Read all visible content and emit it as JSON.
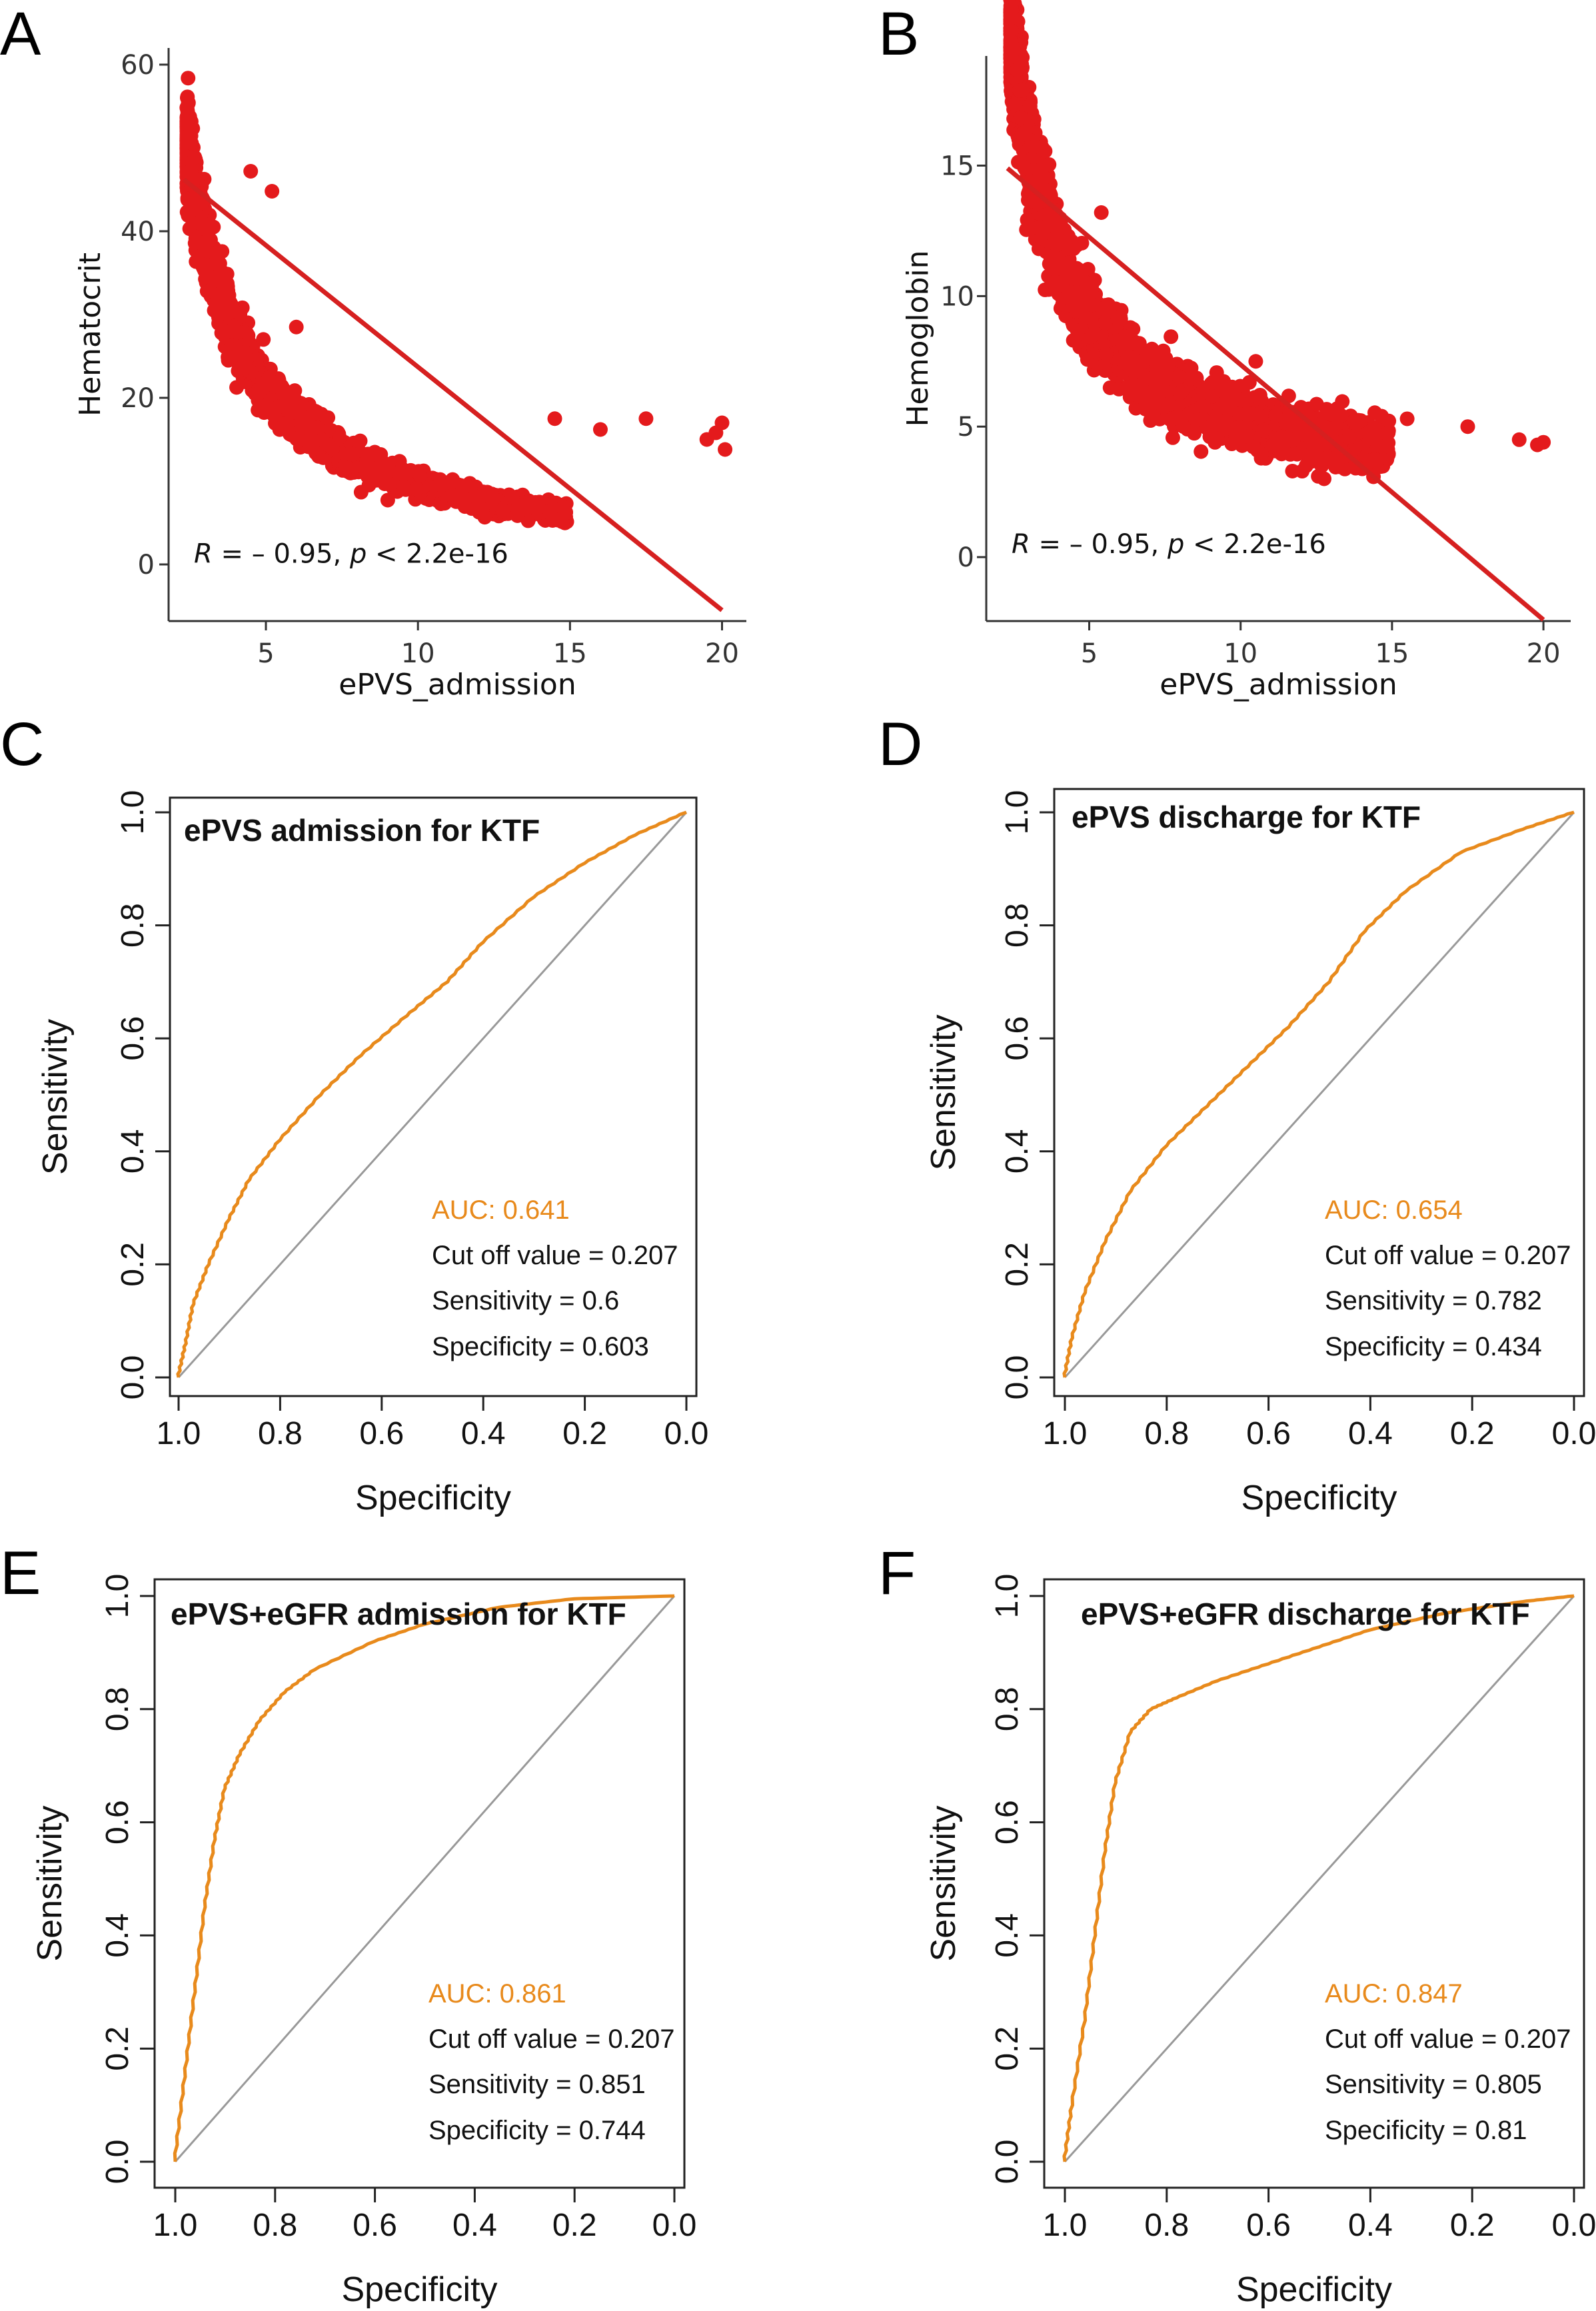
{
  "chart_data": [
    {
      "panel": "A",
      "type": "scatter",
      "xlabel": "ePVS_admission",
      "ylabel": "Hematocrit",
      "xlim": [
        1.8,
        20.8
      ],
      "ylim": [
        -6.8,
        62
      ],
      "xticks": [
        "5",
        "10",
        "15",
        "20"
      ],
      "yticks": [
        "0",
        "20",
        "40",
        "60"
      ],
      "annotation": {
        "r_label": "R",
        "r_value": " = – 0.95, ",
        "p_label": "p",
        "p_value": " < 2.2e-16"
      },
      "fit": {
        "x1": 2.3,
        "y1": 46.2,
        "x2": 20,
        "y2": -5.5
      },
      "curve": {
        "a": 137,
        "b": 1.15,
        "offset": 0
      },
      "outliers": [
        [
          19.5,
          15
        ],
        [
          19.8,
          15.8
        ],
        [
          20,
          17
        ],
        [
          20.1,
          13.8
        ],
        [
          17.5,
          17.5
        ],
        [
          16,
          16.2
        ],
        [
          14.5,
          17.5
        ],
        [
          6,
          28.5
        ],
        [
          4.5,
          47.2
        ],
        [
          5.2,
          44.8
        ]
      ],
      "color": "#e41a1c"
    },
    {
      "panel": "B",
      "type": "scatter",
      "xlabel": "ePVS_admission",
      "ylabel": "Hemoglobin",
      "xlim": [
        1.6,
        20.9
      ],
      "ylim": [
        -2.45,
        19.2
      ],
      "xticks": [
        "5",
        "10",
        "15",
        "20"
      ],
      "yticks": [
        "0",
        "5",
        "10",
        "15"
      ],
      "annotation": {
        "r_label": "R",
        "r_value": " = – 0.95, ",
        "p_label": "p",
        "p_value": " < 2.2e-16"
      },
      "fit": {
        "x1": 2.3,
        "y1": 14.9,
        "x2": 20,
        "y2": -2.4
      },
      "curve": {
        "a": 56,
        "b": 1.32,
        "offset": 2.6
      },
      "outliers": [
        [
          19.2,
          4.5
        ],
        [
          19.8,
          4.3
        ],
        [
          20,
          4.4
        ],
        [
          17.5,
          5
        ],
        [
          15.5,
          5.3
        ],
        [
          10.5,
          7.5
        ],
        [
          3.8,
          13.3
        ],
        [
          5.4,
          13.2
        ]
      ],
      "color": "#e41a1c"
    },
    {
      "panel": "C",
      "type": "line",
      "title": "ePVS admission for KTF",
      "xlabel": "Specificity",
      "ylabel": "Sensitivity",
      "xticks": [
        "1.0",
        "0.8",
        "0.6",
        "0.4",
        "0.2",
        "0.0"
      ],
      "yticks": [
        "0.0",
        "0.2",
        "0.4",
        "0.6",
        "0.8",
        "1.0"
      ],
      "auc": "AUC: 0.641",
      "cutoff": "Cut off value = 0.207",
      "sensitivity": "Sensitivity = 0.6",
      "specificity": "Specificity = 0.603",
      "roc": [
        [
          1.0,
          0.0
        ],
        [
          0.985,
          0.06
        ],
        [
          0.97,
          0.13
        ],
        [
          0.94,
          0.2
        ],
        [
          0.9,
          0.28
        ],
        [
          0.86,
          0.35
        ],
        [
          0.8,
          0.42
        ],
        [
          0.72,
          0.5
        ],
        [
          0.64,
          0.57
        ],
        [
          0.55,
          0.64
        ],
        [
          0.47,
          0.7
        ],
        [
          0.4,
          0.77
        ],
        [
          0.3,
          0.85
        ],
        [
          0.2,
          0.91
        ],
        [
          0.1,
          0.96
        ],
        [
          0.0,
          1.0
        ]
      ],
      "color": "#e88a1c"
    },
    {
      "panel": "D",
      "type": "line",
      "title": "ePVS discharge for KTF",
      "xlabel": "Specificity",
      "ylabel": "Sensitivity",
      "xticks": [
        "1.0",
        "0.8",
        "0.6",
        "0.4",
        "0.2",
        "0.0"
      ],
      "yticks": [
        "0.0",
        "0.2",
        "0.4",
        "0.6",
        "0.8",
        "1.0"
      ],
      "auc": "AUC: 0.654",
      "cutoff": "Cut off value = 0.207",
      "sensitivity": "Sensitivity = 0.782",
      "specificity": "Specificity = 0.434",
      "roc": [
        [
          1.0,
          0.0
        ],
        [
          0.985,
          0.07
        ],
        [
          0.96,
          0.15
        ],
        [
          0.92,
          0.24
        ],
        [
          0.87,
          0.33
        ],
        [
          0.8,
          0.41
        ],
        [
          0.72,
          0.48
        ],
        [
          0.64,
          0.55
        ],
        [
          0.56,
          0.62
        ],
        [
          0.48,
          0.7
        ],
        [
          0.41,
          0.79
        ],
        [
          0.33,
          0.86
        ],
        [
          0.22,
          0.93
        ],
        [
          0.1,
          0.97
        ],
        [
          0.0,
          1.0
        ]
      ],
      "color": "#e88a1c"
    },
    {
      "panel": "E",
      "type": "line",
      "title": "ePVS+eGFR admission for KTF",
      "xlabel": "Specificity",
      "ylabel": "Sensitivity",
      "xticks": [
        "1.0",
        "0.8",
        "0.6",
        "0.4",
        "0.2",
        "0.0"
      ],
      "yticks": [
        "0.0",
        "0.2",
        "0.4",
        "0.6",
        "0.8",
        "1.0"
      ],
      "auc": "AUC: 0.861",
      "cutoff": "Cut off value = 0.207",
      "sensitivity": "Sensitivity = 0.851",
      "specificity": "Specificity = 0.744",
      "roc": [
        [
          1.0,
          0.0
        ],
        [
          0.98,
          0.15
        ],
        [
          0.96,
          0.3
        ],
        [
          0.94,
          0.45
        ],
        [
          0.92,
          0.57
        ],
        [
          0.9,
          0.66
        ],
        [
          0.87,
          0.72
        ],
        [
          0.83,
          0.78
        ],
        [
          0.78,
          0.83
        ],
        [
          0.72,
          0.87
        ],
        [
          0.6,
          0.92
        ],
        [
          0.5,
          0.95
        ],
        [
          0.35,
          0.98
        ],
        [
          0.2,
          0.995
        ],
        [
          0.0,
          1.0
        ]
      ],
      "color": "#e88a1c"
    },
    {
      "panel": "F",
      "type": "line",
      "title": "ePVS+eGFR discharge for KTF",
      "xlabel": "Specificity",
      "ylabel": "Sensitivity",
      "xticks": [
        "1.0",
        "0.8",
        "0.6",
        "0.4",
        "0.2",
        "0.0"
      ],
      "yticks": [
        "0.0",
        "0.2",
        "0.4",
        "0.6",
        "0.8",
        "1.0"
      ],
      "auc": "AUC: 0.847",
      "cutoff": "Cut off value = 0.207",
      "sensitivity": "Sensitivity = 0.805",
      "specificity": "Specificity = 0.81",
      "roc": [
        [
          1.0,
          0.0
        ],
        [
          0.985,
          0.1
        ],
        [
          0.96,
          0.25
        ],
        [
          0.94,
          0.4
        ],
        [
          0.92,
          0.55
        ],
        [
          0.9,
          0.67
        ],
        [
          0.87,
          0.76
        ],
        [
          0.83,
          0.8
        ],
        [
          0.78,
          0.82
        ],
        [
          0.7,
          0.85
        ],
        [
          0.6,
          0.88
        ],
        [
          0.5,
          0.91
        ],
        [
          0.4,
          0.94
        ],
        [
          0.25,
          0.97
        ],
        [
          0.1,
          0.99
        ],
        [
          0.0,
          1.0
        ]
      ],
      "color": "#e88a1c"
    }
  ]
}
